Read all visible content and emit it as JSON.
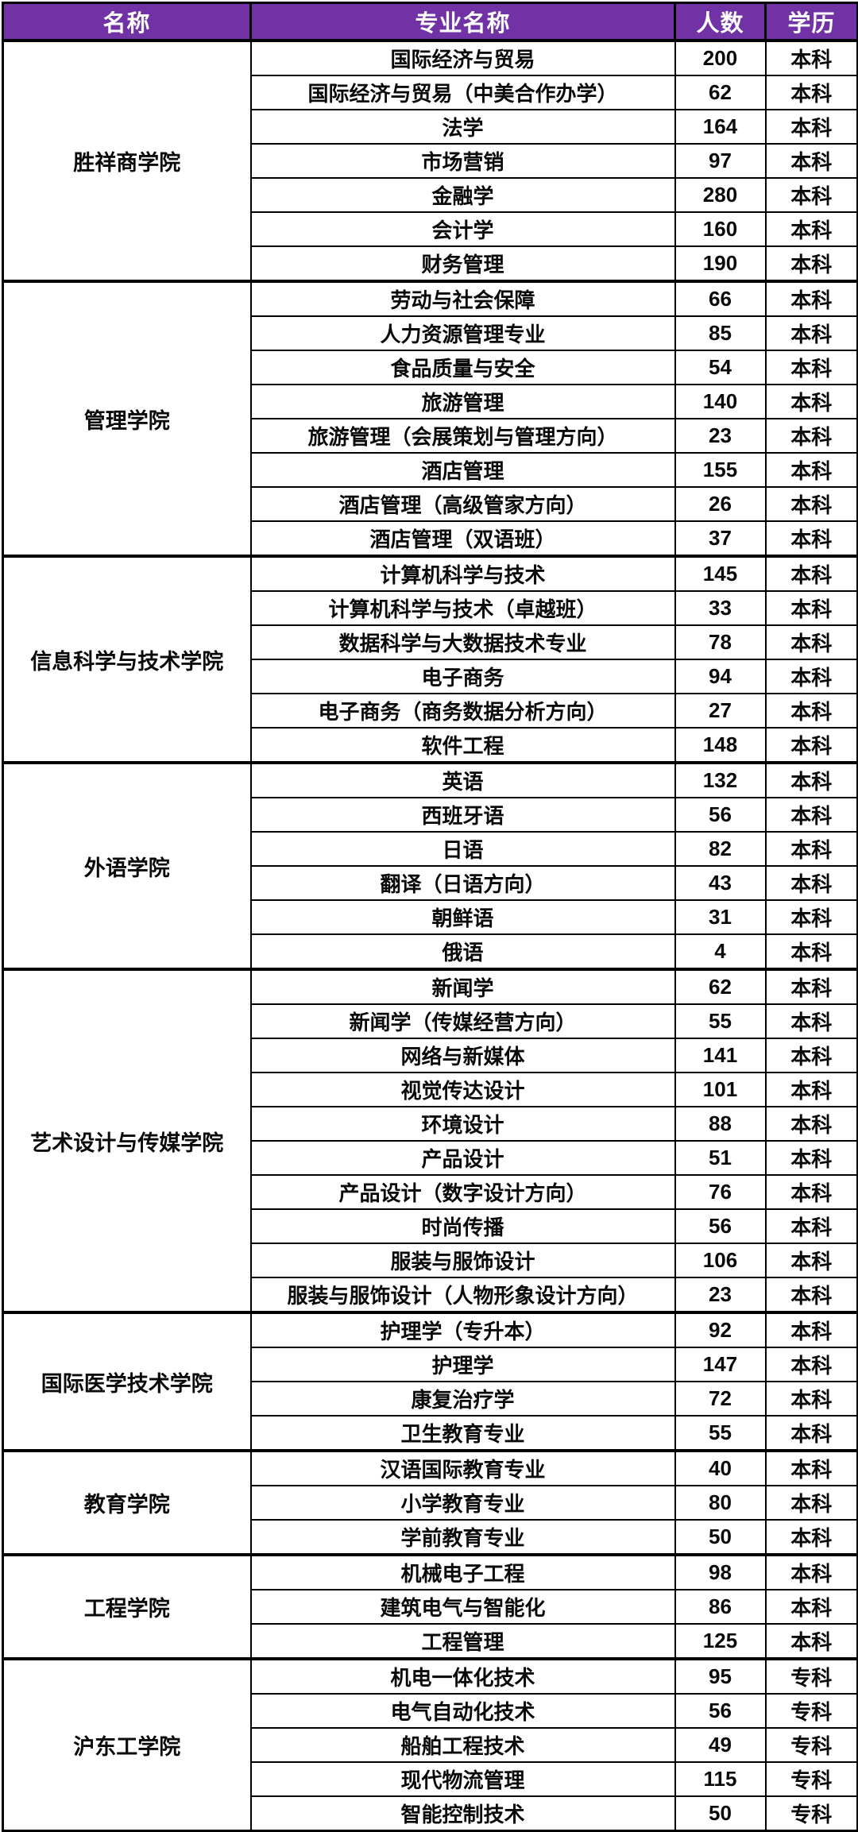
{
  "colors": {
    "header_bg": "#7132A5",
    "header_text": "#FFFFFF",
    "border": "#000000",
    "body_text": "#0A0A0A",
    "body_bg": "#FFFFFF"
  },
  "header": {
    "columns": [
      {
        "label": "名称"
      },
      {
        "label": "专业名称"
      },
      {
        "label": "人数"
      },
      {
        "label": "学历"
      }
    ]
  },
  "groups": [
    {
      "name": "胜祥商学院",
      "majors": [
        {
          "major": "国际经济与贸易",
          "count": 200,
          "degree": "本科"
        },
        {
          "major": "国际经济与贸易（中美合作办学）",
          "count": 62,
          "degree": "本科"
        },
        {
          "major": "法学",
          "count": 164,
          "degree": "本科"
        },
        {
          "major": "市场营销",
          "count": 97,
          "degree": "本科"
        },
        {
          "major": "金融学",
          "count": 280,
          "degree": "本科"
        },
        {
          "major": "会计学",
          "count": 160,
          "degree": "本科"
        },
        {
          "major": "财务管理",
          "count": 190,
          "degree": "本科"
        }
      ]
    },
    {
      "name": "管理学院",
      "majors": [
        {
          "major": "劳动与社会保障",
          "count": 66,
          "degree": "本科"
        },
        {
          "major": "人力资源管理专业",
          "count": 85,
          "degree": "本科"
        },
        {
          "major": "食品质量与安全",
          "count": 54,
          "degree": "本科"
        },
        {
          "major": "旅游管理",
          "count": 140,
          "degree": "本科"
        },
        {
          "major": "旅游管理（会展策划与管理方向）",
          "count": 23,
          "degree": "本科"
        },
        {
          "major": "酒店管理",
          "count": 155,
          "degree": "本科"
        },
        {
          "major": "酒店管理（高级管家方向）",
          "count": 26,
          "degree": "本科"
        },
        {
          "major": "酒店管理（双语班）",
          "count": 37,
          "degree": "本科"
        }
      ]
    },
    {
      "name": "信息科学与技术学院",
      "majors": [
        {
          "major": "计算机科学与技术",
          "count": 145,
          "degree": "本科"
        },
        {
          "major": "计算机科学与技术（卓越班）",
          "count": 33,
          "degree": "本科"
        },
        {
          "major": "数据科学与大数据技术专业",
          "count": 78,
          "degree": "本科"
        },
        {
          "major": "电子商务",
          "count": 94,
          "degree": "本科"
        },
        {
          "major": "电子商务（商务数据分析方向）",
          "count": 27,
          "degree": "本科"
        },
        {
          "major": "软件工程",
          "count": 148,
          "degree": "本科"
        }
      ]
    },
    {
      "name": "外语学院",
      "majors": [
        {
          "major": "英语",
          "count": 132,
          "degree": "本科"
        },
        {
          "major": "西班牙语",
          "count": 56,
          "degree": "本科"
        },
        {
          "major": "日语",
          "count": 82,
          "degree": "本科"
        },
        {
          "major": "翻译（日语方向）",
          "count": 43,
          "degree": "本科"
        },
        {
          "major": "朝鲜语",
          "count": 31,
          "degree": "本科"
        },
        {
          "major": "俄语",
          "count": 4,
          "degree": "本科"
        }
      ]
    },
    {
      "name": "艺术设计与传媒学院",
      "majors": [
        {
          "major": "新闻学",
          "count": 62,
          "degree": "本科"
        },
        {
          "major": "新闻学（传媒经营方向）",
          "count": 55,
          "degree": "本科"
        },
        {
          "major": "网络与新媒体",
          "count": 141,
          "degree": "本科"
        },
        {
          "major": "视觉传达设计",
          "count": 101,
          "degree": "本科"
        },
        {
          "major": "环境设计",
          "count": 88,
          "degree": "本科"
        },
        {
          "major": "产品设计",
          "count": 51,
          "degree": "本科"
        },
        {
          "major": "产品设计（数字设计方向）",
          "count": 76,
          "degree": "本科"
        },
        {
          "major": "时尚传播",
          "count": 56,
          "degree": "本科"
        },
        {
          "major": "服装与服饰设计",
          "count": 106,
          "degree": "本科"
        },
        {
          "major": "服装与服饰设计（人物形象设计方向）",
          "count": 23,
          "degree": "本科"
        }
      ]
    },
    {
      "name": "国际医学技术学院",
      "majors": [
        {
          "major": "护理学（专升本）",
          "count": 92,
          "degree": "本科"
        },
        {
          "major": "护理学",
          "count": 147,
          "degree": "本科"
        },
        {
          "major": "康复治疗学",
          "count": 72,
          "degree": "本科"
        },
        {
          "major": "卫生教育专业",
          "count": 55,
          "degree": "本科"
        }
      ]
    },
    {
      "name": "教育学院",
      "majors": [
        {
          "major": "汉语国际教育专业",
          "count": 40,
          "degree": "本科"
        },
        {
          "major": "小学教育专业",
          "count": 80,
          "degree": "本科"
        },
        {
          "major": "学前教育专业",
          "count": 50,
          "degree": "本科"
        }
      ]
    },
    {
      "name": "工程学院",
      "majors": [
        {
          "major": "机械电子工程",
          "count": 98,
          "degree": "本科"
        },
        {
          "major": "建筑电气与智能化",
          "count": 86,
          "degree": "本科"
        },
        {
          "major": "工程管理",
          "count": 125,
          "degree": "本科"
        }
      ]
    },
    {
      "name": "沪东工学院",
      "majors": [
        {
          "major": "机电一体化技术",
          "count": 95,
          "degree": "专科"
        },
        {
          "major": "电气自动化技术",
          "count": 56,
          "degree": "专科"
        },
        {
          "major": "船舶工程技术",
          "count": 49,
          "degree": "专科"
        },
        {
          "major": "现代物流管理",
          "count": 115,
          "degree": "专科"
        },
        {
          "major": "智能控制技术",
          "count": 50,
          "degree": "专科"
        }
      ]
    }
  ]
}
